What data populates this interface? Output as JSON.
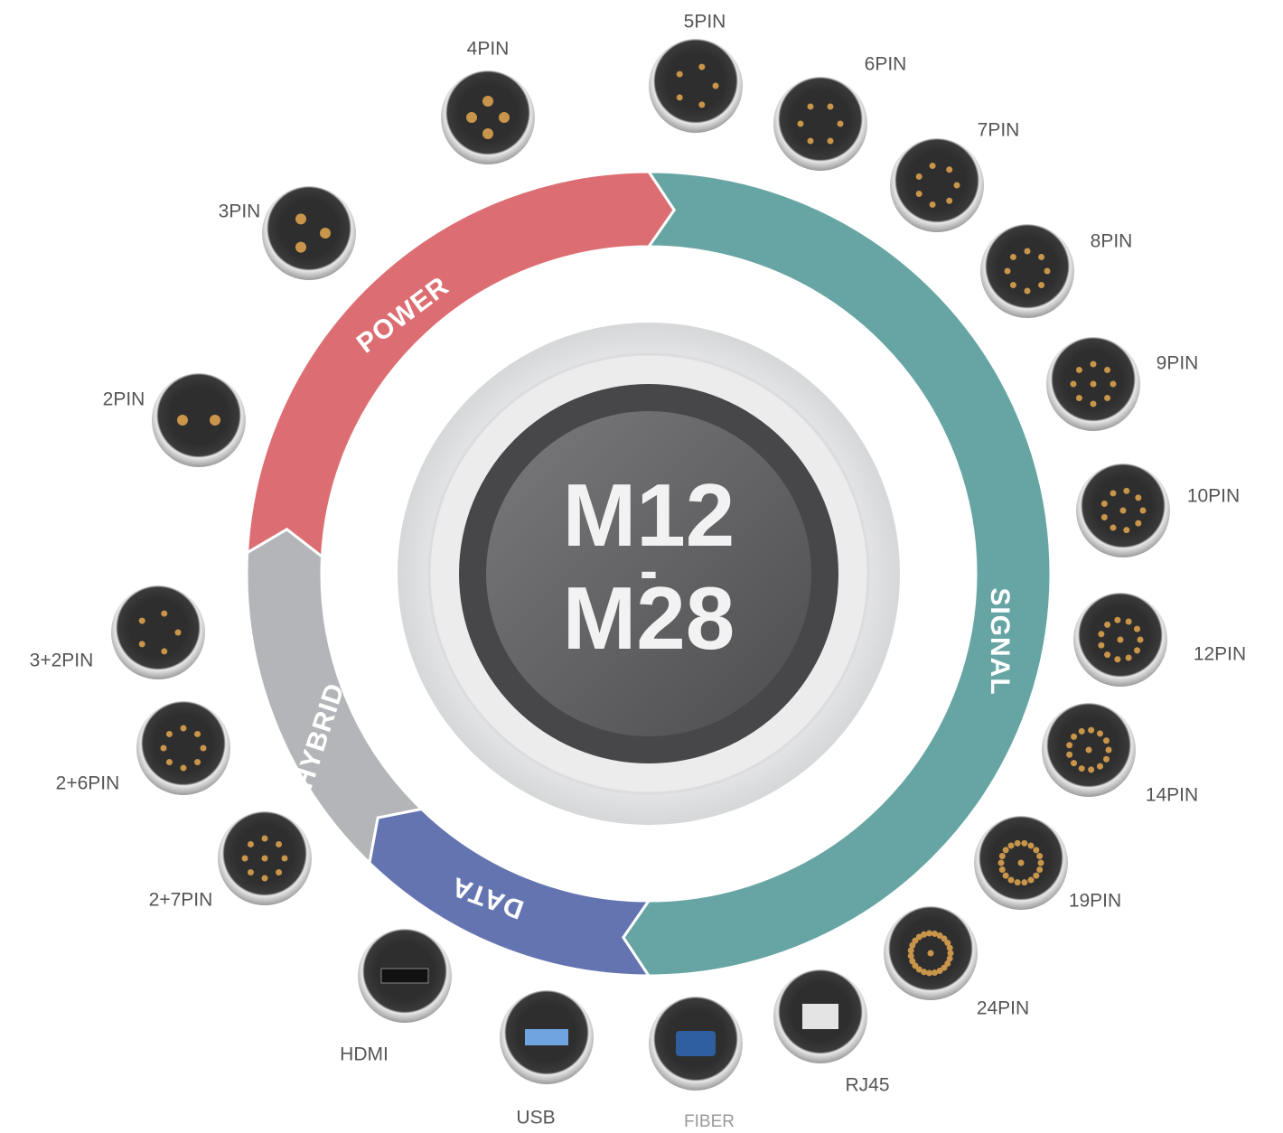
{
  "center": {
    "top": "M12",
    "dash": "-",
    "bottom": "M28"
  },
  "segments": [
    {
      "label": "SIGNAL"
    },
    {
      "label": "DATA"
    },
    {
      "label": "HYBRID"
    },
    {
      "label": "POWER"
    }
  ],
  "connectors": [
    {
      "label": "4PIN"
    },
    {
      "label": "5PIN"
    },
    {
      "label": "6PIN"
    },
    {
      "label": "7PIN"
    },
    {
      "label": "8PIN"
    },
    {
      "label": "9PIN"
    },
    {
      "label": "10PIN"
    },
    {
      "label": "12PIN"
    },
    {
      "label": "14PIN"
    },
    {
      "label": "19PIN"
    },
    {
      "label": "24PIN"
    },
    {
      "label": "RJ45"
    },
    {
      "label": "FIBER"
    },
    {
      "label": "USB"
    },
    {
      "label": "HDMI"
    },
    {
      "label": "2+7PIN"
    },
    {
      "label": "2+6PIN"
    },
    {
      "label": "3+2PIN"
    },
    {
      "label": "2PIN"
    },
    {
      "label": "3PIN"
    }
  ]
}
